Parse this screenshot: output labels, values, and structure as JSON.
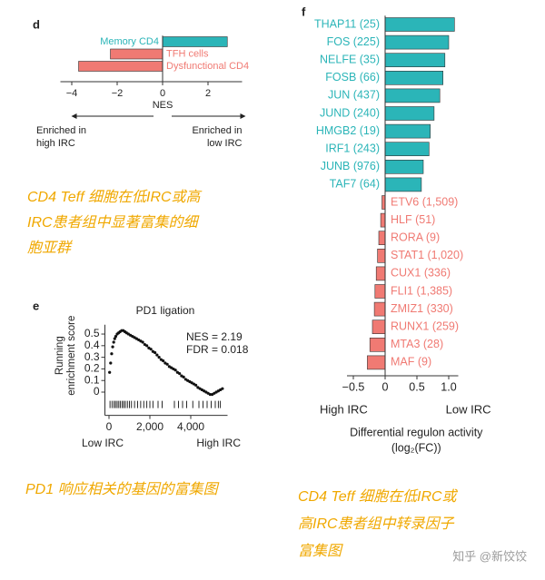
{
  "chart_data": [
    {
      "type": "hbar",
      "panel": "d",
      "categories": [
        "Memory CD4",
        "TFH cells",
        "Dysfunctional CD4"
      ],
      "values": [
        2.85,
        -2.3,
        -3.7
      ],
      "colors": [
        "#2bb5b8",
        "#f07a73",
        "#f07a73"
      ],
      "xlim": [
        -4.5,
        3.5
      ],
      "xticks": [
        {
          "value": -4,
          "label": "−4"
        },
        {
          "value": -2,
          "label": "−2"
        },
        0,
        2
      ],
      "xlabel": "NES",
      "left_note": [
        "Enriched in",
        "high IRC"
      ],
      "right_note": [
        "Enriched in",
        "low IRC"
      ]
    },
    {
      "type": "line",
      "panel": "e",
      "title": "PD1 ligation",
      "ylabel": [
        "Running",
        "enrichment score"
      ],
      "x": [
        30,
        80,
        130,
        180,
        230,
        280,
        330,
        400,
        470,
        540,
        620,
        700,
        780,
        860,
        950,
        1050,
        1150,
        1250,
        1350,
        1450,
        1550,
        1650,
        1750,
        1850,
        1950,
        2050,
        2150,
        2250,
        2350,
        2450,
        2550,
        2650,
        2750,
        2850,
        2950,
        3050,
        3150,
        3250,
        3350,
        3450,
        3550,
        3650,
        3750,
        3850,
        3950,
        4050,
        4150,
        4250,
        4350,
        4450,
        4550,
        4650,
        4750,
        4850,
        4950,
        5050,
        5150,
        5250,
        5350,
        5450,
        5550
      ],
      "values": [
        0.17,
        0.25,
        0.33,
        0.39,
        0.43,
        0.46,
        0.48,
        0.5,
        0.51,
        0.52,
        0.53,
        0.53,
        0.52,
        0.51,
        0.5,
        0.49,
        0.48,
        0.47,
        0.46,
        0.45,
        0.44,
        0.43,
        0.41,
        0.4,
        0.38,
        0.37,
        0.35,
        0.34,
        0.32,
        0.3,
        0.28,
        0.27,
        0.25,
        0.24,
        0.22,
        0.21,
        0.2,
        0.19,
        0.17,
        0.16,
        0.14,
        0.13,
        0.11,
        0.1,
        0.09,
        0.08,
        0.07,
        0.06,
        0.04,
        0.03,
        0.02,
        0.01,
        0.0,
        -0.01,
        -0.02,
        -0.02,
        -0.01,
        0.0,
        0.01,
        0.02,
        0.03
      ],
      "rug": [
        50,
        150,
        250,
        320,
        400,
        480,
        560,
        650,
        720,
        800,
        900,
        1000,
        1100,
        1250,
        1400,
        1550,
        1700,
        1850,
        2000,
        2150,
        2400,
        2600,
        3200,
        3400,
        3600,
        3800,
        4100,
        4400,
        4600,
        4800,
        5000,
        5200,
        5350,
        5450
      ],
      "color": "#111111",
      "xlim": [
        -200,
        5800
      ],
      "ylim": [
        -0.2,
        0.58
      ],
      "xticks": [
        0,
        {
          "value": 2000,
          "label": "2,000"
        },
        {
          "value": 4000,
          "label": "4,000"
        }
      ],
      "yticks": [
        0,
        0.1,
        0.2,
        0.3,
        0.4,
        0.5
      ],
      "annotations": [
        "NES = 2.19",
        "FDR = 0.018"
      ],
      "x_end_labels": [
        "Low IRC",
        "High IRC"
      ]
    },
    {
      "type": "hbar",
      "panel": "f",
      "categories": [
        "THAP11 (25)",
        "FOS (225)",
        "NELFE (35)",
        "FOSB (66)",
        "JUN (437)",
        "JUND (240)",
        "HMGB2 (19)",
        "IRF1 (243)",
        "JUNB (976)",
        "TAF7 (64)",
        "ETV6 (1,509)",
        "HLF (51)",
        "RORA (9)",
        "STAT1 (1,020)",
        "CUX1 (336)",
        "FLI1 (1,385)",
        "ZMIZ1 (330)",
        "RUNX1 (259)",
        "MTA3 (28)",
        "MAF (9)"
      ],
      "values": [
        1.09,
        1.0,
        0.94,
        0.91,
        0.86,
        0.77,
        0.71,
        0.69,
        0.6,
        0.57,
        -0.05,
        -0.07,
        -0.1,
        -0.12,
        -0.14,
        -0.16,
        -0.17,
        -0.2,
        -0.24,
        -0.28
      ],
      "colors": [
        "#2bb5b8",
        "#2bb5b8",
        "#2bb5b8",
        "#2bb5b8",
        "#2bb5b8",
        "#2bb5b8",
        "#2bb5b8",
        "#2bb5b8",
        "#2bb5b8",
        "#2bb5b8",
        "#f07a73",
        "#f07a73",
        "#f07a73",
        "#f07a73",
        "#f07a73",
        "#f07a73",
        "#f07a73",
        "#f07a73",
        "#f07a73",
        "#f07a73"
      ],
      "xlim": [
        -0.6,
        1.15
      ],
      "xticks": [
        {
          "value": -0.5,
          "label": "−0.5"
        },
        0,
        0.5,
        {
          "value": 1.0,
          "label": "1.0"
        }
      ],
      "x_end_labels": [
        "High IRC",
        "Low IRC"
      ],
      "xlabel_lines": [
        "Differential regulon activity",
        "(log₂(FC))"
      ]
    }
  ],
  "captions": [
    [
      "CD4 Teff 细胞在低IRC或高",
      "IRC患者组中显著富集的细",
      "胞亚群"
    ],
    [
      "PD1 响应相关的基因的富集图"
    ],
    [
      "CD4 Teff 细胞在低IRC或",
      "高IRC患者组中转录因子",
      "富集图"
    ]
  ],
  "watermark": "知乎 @新饺饺"
}
